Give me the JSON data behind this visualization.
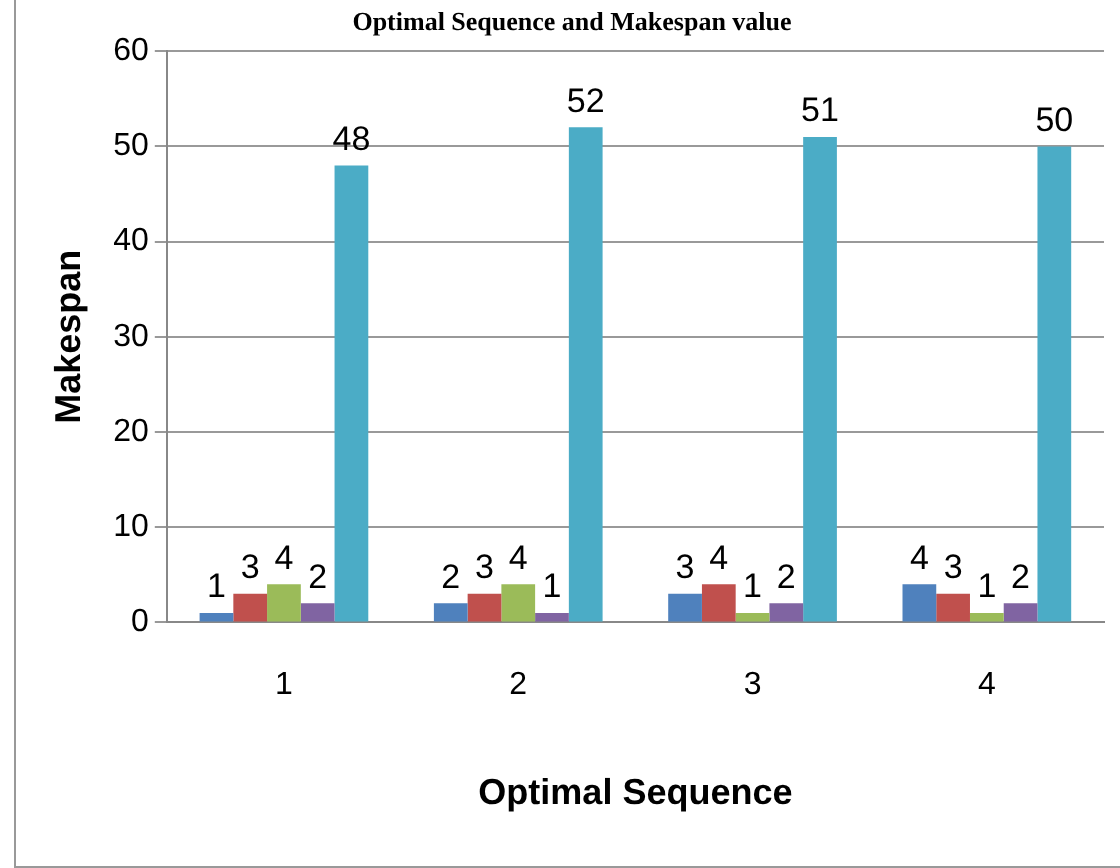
{
  "chart_data": {
    "type": "bar",
    "title": "Optimal Sequence and Makespan value",
    "xlabel": "Optimal Sequence",
    "ylabel": "Makespan",
    "categories": [
      "1",
      "2",
      "3",
      "4"
    ],
    "series": [
      {
        "color": "#4f81bd",
        "values": [
          1,
          2,
          3,
          4
        ]
      },
      {
        "color": "#c0504d",
        "values": [
          3,
          3,
          4,
          3
        ]
      },
      {
        "color": "#9bbb59",
        "values": [
          4,
          4,
          1,
          1
        ]
      },
      {
        "color": "#8064a2",
        "values": [
          2,
          1,
          2,
          2
        ]
      },
      {
        "color": "#4bacc6",
        "values": [
          48,
          52,
          51,
          50
        ]
      }
    ],
    "ylim": [
      0,
      60
    ],
    "yticks": [
      0,
      10,
      20,
      30,
      40,
      50,
      60
    ],
    "grid": "y",
    "legend": false,
    "data_labels": true
  }
}
